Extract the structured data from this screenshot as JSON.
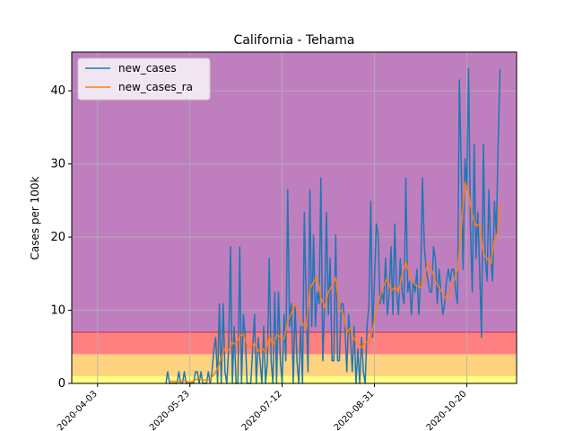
{
  "chart_data": {
    "type": "line",
    "title": "California - Tehama",
    "xlabel": "",
    "ylabel": "Cases per 100k",
    "x_range": [
      "2020-03-20",
      "2020-11-16"
    ],
    "ylim": [
      0,
      45.3
    ],
    "x_ticks": [
      "2020-04-03",
      "2020-05-23",
      "2020-07-12",
      "2020-08-31",
      "2020-10-20"
    ],
    "y_ticks": [
      0,
      10,
      20,
      30,
      40
    ],
    "grid": true,
    "legend_position": "top-left",
    "bands": [
      {
        "from": 0,
        "to": 1,
        "color": "#ffff80"
      },
      {
        "from": 1,
        "to": 4,
        "color": "#ffd280"
      },
      {
        "from": 4,
        "to": 7,
        "color": "#ff8080"
      },
      {
        "from": 7,
        "to": 45.3,
        "color": "#bf7fbf"
      }
    ],
    "band_boundary_line": {
      "y": 7,
      "color": "#d62728"
    },
    "series": [
      {
        "name": "new_cases",
        "color": "#1f77b4",
        "points": [
          [
            "2020-05-10",
            0
          ],
          [
            "2020-05-11",
            1.6
          ],
          [
            "2020-05-12",
            0
          ],
          [
            "2020-05-13",
            0
          ],
          [
            "2020-05-14",
            0
          ],
          [
            "2020-05-15",
            0
          ],
          [
            "2020-05-16",
            0
          ],
          [
            "2020-05-17",
            1.6
          ],
          [
            "2020-05-18",
            0
          ],
          [
            "2020-05-19",
            0
          ],
          [
            "2020-05-20",
            1.6
          ],
          [
            "2020-05-21",
            0
          ],
          [
            "2020-05-22",
            0
          ],
          [
            "2020-05-23",
            0
          ],
          [
            "2020-05-24",
            0
          ],
          [
            "2020-05-25",
            0
          ],
          [
            "2020-05-26",
            1.6
          ],
          [
            "2020-05-27",
            1.6
          ],
          [
            "2020-05-28",
            0
          ],
          [
            "2020-05-29",
            1.6
          ],
          [
            "2020-05-30",
            0
          ],
          [
            "2020-05-31",
            0
          ],
          [
            "2020-06-01",
            0
          ],
          [
            "2020-06-02",
            1.6
          ],
          [
            "2020-06-03",
            0
          ],
          [
            "2020-06-04",
            1.6
          ],
          [
            "2020-06-05",
            4.7
          ],
          [
            "2020-06-06",
            6.3
          ],
          [
            "2020-06-07",
            0
          ],
          [
            "2020-06-08",
            10.9
          ],
          [
            "2020-06-09",
            0
          ],
          [
            "2020-06-10",
            10.9
          ],
          [
            "2020-06-11",
            1.6
          ],
          [
            "2020-06-12",
            0
          ],
          [
            "2020-06-13",
            4.7
          ],
          [
            "2020-06-14",
            18.7
          ],
          [
            "2020-06-15",
            0
          ],
          [
            "2020-06-16",
            7.8
          ],
          [
            "2020-06-17",
            0
          ],
          [
            "2020-06-18",
            0
          ],
          [
            "2020-06-19",
            18.7
          ],
          [
            "2020-06-20",
            0
          ],
          [
            "2020-06-21",
            9.4
          ],
          [
            "2020-06-22",
            6.3
          ],
          [
            "2020-06-23",
            0
          ],
          [
            "2020-06-24",
            0
          ],
          [
            "2020-06-25",
            0
          ],
          [
            "2020-06-26",
            4.7
          ],
          [
            "2020-06-27",
            9.4
          ],
          [
            "2020-06-28",
            0
          ],
          [
            "2020-06-29",
            6.3
          ],
          [
            "2020-06-30",
            3.1
          ],
          [
            "2020-07-01",
            0
          ],
          [
            "2020-07-02",
            7.8
          ],
          [
            "2020-07-03",
            0
          ],
          [
            "2020-07-04",
            3.1
          ],
          [
            "2020-07-05",
            17.1
          ],
          [
            "2020-07-06",
            3.1
          ],
          [
            "2020-07-07",
            0
          ],
          [
            "2020-07-08",
            12.5
          ],
          [
            "2020-07-09",
            0
          ],
          [
            "2020-07-10",
            12.5
          ],
          [
            "2020-07-11",
            3.1
          ],
          [
            "2020-07-12",
            0
          ],
          [
            "2020-07-13",
            9.4
          ],
          [
            "2020-07-14",
            3.1
          ],
          [
            "2020-07-15",
            26.5
          ],
          [
            "2020-07-16",
            7.8
          ],
          [
            "2020-07-17",
            10.9
          ],
          [
            "2020-07-18",
            0
          ],
          [
            "2020-07-19",
            10.9
          ],
          [
            "2020-07-20",
            3.1
          ],
          [
            "2020-07-21",
            0
          ],
          [
            "2020-07-22",
            7.8
          ],
          [
            "2020-07-23",
            0
          ],
          [
            "2020-07-24",
            23.4
          ],
          [
            "2020-07-25",
            10.9
          ],
          [
            "2020-07-26",
            1.6
          ],
          [
            "2020-07-27",
            26.5
          ],
          [
            "2020-07-28",
            7.8
          ],
          [
            "2020-07-29",
            20.3
          ],
          [
            "2020-07-30",
            7.8
          ],
          [
            "2020-07-31",
            12.5
          ],
          [
            "2020-08-01",
            10.9
          ],
          [
            "2020-08-02",
            28.1
          ],
          [
            "2020-08-03",
            3.1
          ],
          [
            "2020-08-04",
            10.9
          ],
          [
            "2020-08-05",
            23.4
          ],
          [
            "2020-08-06",
            9.4
          ],
          [
            "2020-08-07",
            17.1
          ],
          [
            "2020-08-08",
            3.1
          ],
          [
            "2020-08-09",
            3.1
          ],
          [
            "2020-08-10",
            20.3
          ],
          [
            "2020-08-11",
            3.1
          ],
          [
            "2020-08-12",
            3.1
          ],
          [
            "2020-08-13",
            10.9
          ],
          [
            "2020-08-14",
            10.9
          ],
          [
            "2020-08-15",
            7.8
          ],
          [
            "2020-08-16",
            1.6
          ],
          [
            "2020-08-17",
            9.4
          ],
          [
            "2020-08-18",
            6.3
          ],
          [
            "2020-08-19",
            1.6
          ],
          [
            "2020-08-20",
            7.8
          ],
          [
            "2020-08-21",
            0
          ],
          [
            "2020-08-22",
            4.7
          ],
          [
            "2020-08-23",
            0
          ],
          [
            "2020-08-24",
            6.3
          ],
          [
            "2020-08-25",
            1.6
          ],
          [
            "2020-08-26",
            0
          ],
          [
            "2020-08-27",
            7.8
          ],
          [
            "2020-08-28",
            10.9
          ],
          [
            "2020-08-29",
            24.9
          ],
          [
            "2020-08-30",
            6.3
          ],
          [
            "2020-08-31",
            14.0
          ],
          [
            "2020-09-01",
            21.8
          ],
          [
            "2020-09-02",
            20.3
          ],
          [
            "2020-09-03",
            10.9
          ],
          [
            "2020-09-04",
            12.5
          ],
          [
            "2020-09-05",
            10.9
          ],
          [
            "2020-09-06",
            17.1
          ],
          [
            "2020-09-07",
            9.4
          ],
          [
            "2020-09-08",
            12.5
          ],
          [
            "2020-09-09",
            18.7
          ],
          [
            "2020-09-10",
            9.4
          ],
          [
            "2020-09-11",
            21.8
          ],
          [
            "2020-09-12",
            12.5
          ],
          [
            "2020-09-13",
            9.4
          ],
          [
            "2020-09-14",
            17.1
          ],
          [
            "2020-09-15",
            12.5
          ],
          [
            "2020-09-16",
            10.9
          ],
          [
            "2020-09-17",
            28.1
          ],
          [
            "2020-09-18",
            12.5
          ],
          [
            "2020-09-19",
            14.0
          ],
          [
            "2020-09-20",
            9.4
          ],
          [
            "2020-09-21",
            14.0
          ],
          [
            "2020-09-22",
            12.5
          ],
          [
            "2020-09-23",
            15.6
          ],
          [
            "2020-09-24",
            9.4
          ],
          [
            "2020-09-25",
            14.0
          ],
          [
            "2020-09-26",
            28.1
          ],
          [
            "2020-09-27",
            18.7
          ],
          [
            "2020-09-28",
            15.6
          ],
          [
            "2020-09-29",
            14.0
          ],
          [
            "2020-09-30",
            12.5
          ],
          [
            "2020-10-01",
            12.5
          ],
          [
            "2020-10-02",
            18.7
          ],
          [
            "2020-10-03",
            17.1
          ],
          [
            "2020-10-04",
            10.9
          ],
          [
            "2020-10-05",
            15.6
          ],
          [
            "2020-10-06",
            12.5
          ],
          [
            "2020-10-07",
            9.4
          ],
          [
            "2020-10-08",
            10.9
          ],
          [
            "2020-10-09",
            14.0
          ],
          [
            "2020-10-10",
            15.6
          ],
          [
            "2020-10-11",
            14.0
          ],
          [
            "2020-10-12",
            15.6
          ],
          [
            "2020-10-13",
            15.6
          ],
          [
            "2020-10-14",
            12.5
          ],
          [
            "2020-10-15",
            10.9
          ],
          [
            "2020-10-16",
            41.5
          ],
          [
            "2020-10-17",
            29.6
          ],
          [
            "2020-10-18",
            15.6
          ],
          [
            "2020-10-19",
            30.7
          ],
          [
            "2020-10-20",
            26.5
          ],
          [
            "2020-10-21",
            43.0
          ],
          [
            "2020-10-22",
            21.8
          ],
          [
            "2020-10-23",
            12.5
          ],
          [
            "2020-10-24",
            32.7
          ],
          [
            "2020-10-25",
            17.1
          ],
          [
            "2020-10-26",
            23.4
          ],
          [
            "2020-10-27",
            15.6
          ],
          [
            "2020-10-28",
            6.3
          ],
          [
            "2020-10-29",
            32.7
          ],
          [
            "2020-10-30",
            17.1
          ],
          [
            "2020-10-31",
            14.0
          ],
          [
            "2020-11-01",
            26.5
          ],
          [
            "2020-11-02",
            17.1
          ],
          [
            "2020-11-03",
            14.0
          ],
          [
            "2020-11-04",
            24.9
          ],
          [
            "2020-11-05",
            20.3
          ],
          [
            "2020-11-06",
            32.7
          ],
          [
            "2020-11-07",
            43.0
          ]
        ]
      },
      {
        "name": "new_cases_ra",
        "color": "#ff7f0e",
        "points": [
          [
            "2020-05-12",
            0.3
          ],
          [
            "2020-05-14",
            0.3
          ],
          [
            "2020-05-16",
            0.2
          ],
          [
            "2020-05-18",
            0.3
          ],
          [
            "2020-05-20",
            0.4
          ],
          [
            "2020-05-22",
            0.2
          ],
          [
            "2020-05-24",
            0.2
          ],
          [
            "2020-05-26",
            0.5
          ],
          [
            "2020-05-28",
            0.7
          ],
          [
            "2020-05-30",
            0.5
          ],
          [
            "2020-06-01",
            0.4
          ],
          [
            "2020-06-03",
            0.6
          ],
          [
            "2020-06-05",
            1.2
          ],
          [
            "2020-06-07",
            2.0
          ],
          [
            "2020-06-09",
            3.5
          ],
          [
            "2020-06-11",
            4.8
          ],
          [
            "2020-06-13",
            4.5
          ],
          [
            "2020-06-15",
            5.6
          ],
          [
            "2020-06-17",
            5.3
          ],
          [
            "2020-06-19",
            6.5
          ],
          [
            "2020-06-21",
            6.7
          ],
          [
            "2020-06-23",
            5.2
          ],
          [
            "2020-06-25",
            4.9
          ],
          [
            "2020-06-27",
            5.5
          ],
          [
            "2020-06-29",
            4.4
          ],
          [
            "2020-07-01",
            4.9
          ],
          [
            "2020-07-03",
            4.2
          ],
          [
            "2020-07-05",
            6.4
          ],
          [
            "2020-07-07",
            5.2
          ],
          [
            "2020-07-09",
            6.6
          ],
          [
            "2020-07-11",
            6.4
          ],
          [
            "2020-07-13",
            6.1
          ],
          [
            "2020-07-15",
            8.5
          ],
          [
            "2020-07-17",
            9.6
          ],
          [
            "2020-07-19",
            10.9
          ],
          [
            "2020-07-21",
            9.4
          ],
          [
            "2020-07-23",
            8.2
          ],
          [
            "2020-07-25",
            7.4
          ],
          [
            "2020-07-27",
            12.9
          ],
          [
            "2020-07-29",
            13.9
          ],
          [
            "2020-07-31",
            14.6
          ],
          [
            "2020-08-02",
            11.8
          ],
          [
            "2020-08-04",
            10.4
          ],
          [
            "2020-08-06",
            12.5
          ],
          [
            "2020-08-08",
            13.3
          ],
          [
            "2020-08-10",
            14.5
          ],
          [
            "2020-08-12",
            10.2
          ],
          [
            "2020-08-14",
            9.6
          ],
          [
            "2020-08-16",
            7.0
          ],
          [
            "2020-08-18",
            7.6
          ],
          [
            "2020-08-20",
            6.0
          ],
          [
            "2020-08-22",
            5.4
          ],
          [
            "2020-08-24",
            4.9
          ],
          [
            "2020-08-26",
            5.7
          ],
          [
            "2020-08-28",
            5.5
          ],
          [
            "2020-08-30",
            7.3
          ],
          [
            "2020-09-01",
            10.2
          ],
          [
            "2020-09-03",
            11.8
          ],
          [
            "2020-09-05",
            13.4
          ],
          [
            "2020-09-07",
            14.4
          ],
          [
            "2020-09-09",
            12.6
          ],
          [
            "2020-09-11",
            13.2
          ],
          [
            "2020-09-13",
            12.4
          ],
          [
            "2020-09-15",
            14.9
          ],
          [
            "2020-09-17",
            16.6
          ],
          [
            "2020-09-19",
            15.0
          ],
          [
            "2020-09-21",
            13.9
          ],
          [
            "2020-09-23",
            13.3
          ],
          [
            "2020-09-25",
            13.1
          ],
          [
            "2020-09-27",
            14.5
          ],
          [
            "2020-09-29",
            16.6
          ],
          [
            "2020-10-01",
            15.5
          ],
          [
            "2020-10-03",
            13.9
          ],
          [
            "2020-10-05",
            13.1
          ],
          [
            "2020-10-07",
            12.3
          ],
          [
            "2020-10-09",
            11.4
          ],
          [
            "2020-10-11",
            12.2
          ],
          [
            "2020-10-13",
            14.0
          ],
          [
            "2020-10-15",
            15.5
          ],
          [
            "2020-10-17",
            21.0
          ],
          [
            "2020-10-19",
            27.5
          ],
          [
            "2020-10-21",
            26.0
          ],
          [
            "2020-10-23",
            23.0
          ],
          [
            "2020-10-25",
            21.5
          ],
          [
            "2020-10-27",
            21.8
          ],
          [
            "2020-10-29",
            17.8
          ],
          [
            "2020-10-31",
            17.0
          ],
          [
            "2020-11-02",
            16.4
          ],
          [
            "2020-11-04",
            19.5
          ],
          [
            "2020-11-06",
            20.8
          ],
          [
            "2020-11-07",
            24.6
          ]
        ]
      }
    ]
  }
}
